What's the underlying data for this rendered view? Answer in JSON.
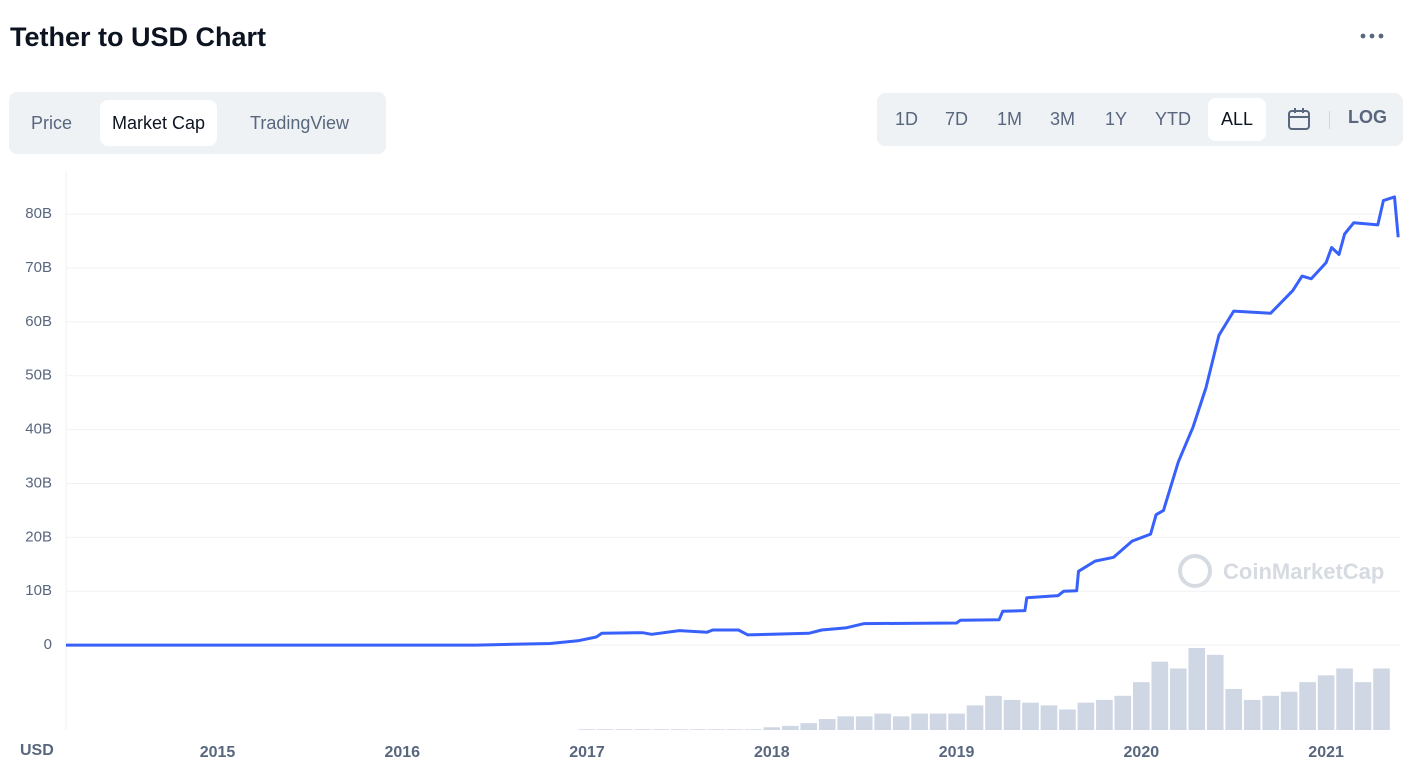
{
  "header": {
    "title": "Tether to USD Chart"
  },
  "tabs": [
    "Price",
    "Market Cap",
    "TradingView"
  ],
  "active_tab": 1,
  "ranges": [
    "1D",
    "7D",
    "1M",
    "3M",
    "1Y",
    "YTD",
    "ALL"
  ],
  "active_range": 6,
  "log_button": "LOG",
  "chart_data": {
    "type": "line",
    "color": "#3861fb",
    "grid": true,
    "y_unit_label": "USD",
    "watermark": "CoinMarketCap",
    "xlim": [
      2014.18,
      2021.4
    ],
    "xticks": [
      2015,
      2016,
      2017,
      2018,
      2019,
      2020,
      2021
    ],
    "ylim": [
      -10,
      88
    ],
    "yticks": [
      0,
      {
        "value": 10,
        "label": "10B"
      },
      {
        "value": 20,
        "label": "20B"
      },
      {
        "value": 30,
        "label": "30B"
      },
      {
        "value": 40,
        "label": "40B"
      },
      {
        "value": 50,
        "label": "50B"
      },
      {
        "value": 60,
        "label": "60B"
      },
      {
        "value": 70,
        "label": "70B"
      },
      {
        "value": 80,
        "label": "80B"
      }
    ],
    "x": [
      2014.18,
      2016.4,
      2016.8,
      2016.95,
      2017.05,
      2017.08,
      2017.3,
      2017.35,
      2017.5,
      2017.65,
      2017.68,
      2017.82,
      2017.87,
      2018.0,
      2018.2,
      2018.27,
      2018.4,
      2018.5,
      2019.0,
      2019.02,
      2019.23,
      2019.25,
      2019.37,
      2019.38,
      2019.55,
      2019.58,
      2019.65,
      2019.66,
      2019.75,
      2019.85,
      2019.95,
      2020.05,
      2020.08,
      2020.12,
      2020.2,
      2020.28,
      2020.35,
      2020.42,
      2020.5,
      2020.7,
      2020.82,
      2020.87,
      2020.92,
      2021.0,
      2021.03,
      2021.07,
      2021.1,
      2021.15,
      2021.28,
      2021.31,
      2021.37,
      2021.39
    ],
    "values": [
      0,
      0.01,
      0.3,
      0.8,
      1.5,
      2.2,
      2.3,
      2.0,
      2.7,
      2.4,
      2.8,
      2.8,
      1.9,
      2.0,
      2.2,
      2.8,
      3.2,
      4.0,
      4.1,
      4.6,
      4.7,
      6.3,
      6.4,
      8.8,
      9.2,
      10.0,
      10.1,
      13.7,
      15.6,
      16.3,
      19.3,
      20.6,
      24.2,
      25,
      34,
      40.5,
      47.8,
      57.5,
      62,
      61.6,
      65.8,
      68.5,
      68,
      71,
      73.8,
      72.5,
      76.3,
      78.4,
      78,
      82.5,
      83.2,
      75.7
    ],
    "volume": {
      "color": "#cfd6e4",
      "x": [
        2017.0,
        2017.1,
        2017.2,
        2017.3,
        2017.4,
        2017.5,
        2017.6,
        2017.7,
        2017.8,
        2017.9,
        2018.0,
        2018.1,
        2018.2,
        2018.3,
        2018.4,
        2018.5,
        2018.6,
        2018.7,
        2018.8,
        2018.9,
        2019.0,
        2019.1,
        2019.2,
        2019.3,
        2019.4,
        2019.5,
        2019.6,
        2019.7,
        2019.8,
        2019.9,
        2020.0,
        2020.1,
        2020.2,
        2020.3,
        2020.4,
        2020.5,
        2020.6,
        2020.7,
        2020.8,
        2020.9,
        2021.0,
        2021.1,
        2021.2,
        2021.3
      ],
      "values": [
        0.5,
        0.5,
        0.5,
        0.5,
        0.5,
        0.5,
        0.5,
        0.5,
        0.5,
        0.5,
        2,
        3,
        5,
        8,
        10,
        10,
        12,
        10,
        12,
        12,
        12,
        18,
        25,
        22,
        20,
        18,
        15,
        20,
        22,
        25,
        35,
        50,
        45,
        60,
        55,
        30,
        22,
        25,
        28,
        35,
        40,
        45,
        35,
        45
      ]
    }
  }
}
